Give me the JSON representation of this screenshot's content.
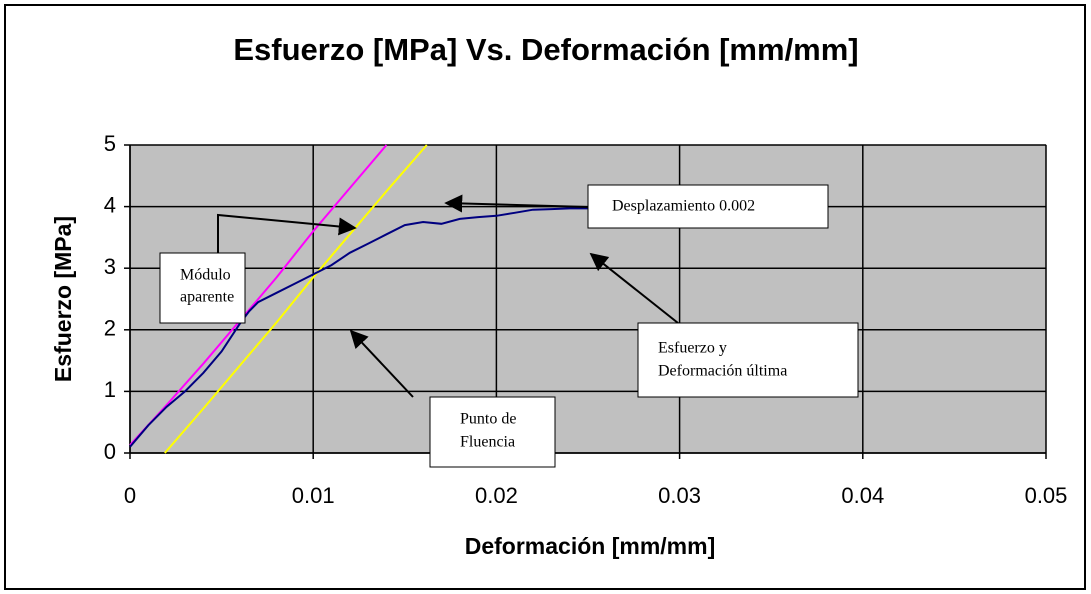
{
  "chart_data": {
    "type": "line",
    "title": "Esfuerzo  [MPa] Vs. Deformación [mm/mm]",
    "x_label": "Deformación [mm/mm]",
    "y_label": "Esfuerzo  [MPa]",
    "xlim": [
      0,
      0.05
    ],
    "ylim": [
      0,
      5
    ],
    "xticks": [
      0,
      0.01,
      0.02,
      0.03,
      0.04,
      0.05
    ],
    "yticks": [
      0,
      1,
      2,
      3,
      4,
      5
    ],
    "grid": true,
    "plot_background": "#c0c0c0",
    "series": [
      {
        "color": "#ff00ff",
        "x": [
          0,
          0.002,
          0.004,
          0.006,
          0.008,
          0.01,
          0.012,
          0.014
        ],
        "values": [
          0.13,
          0.78,
          1.45,
          2.15,
          2.85,
          3.6,
          4.3,
          5
        ]
      },
      {
        "color": "#ffff00",
        "x": [
          0.0019,
          0.004,
          0.006,
          0.008,
          0.01,
          0.012,
          0.014,
          0.0162
        ],
        "values": [
          0,
          0.72,
          1.42,
          2.12,
          2.85,
          3.55,
          4.25,
          5
        ]
      },
      {
        "color": "#000080",
        "x": [
          0,
          0.001,
          0.002,
          0.003,
          0.004,
          0.005,
          0.006,
          0.0065,
          0.007,
          0.008,
          0.009,
          0.01,
          0.011,
          0.012,
          0.013,
          0.014,
          0.015,
          0.016,
          0.017,
          0.018,
          0.019,
          0.02,
          0.021,
          0.022,
          0.023,
          0.024,
          0.025
        ],
        "values": [
          0.1,
          0.45,
          0.75,
          1.0,
          1.3,
          1.65,
          2.1,
          2.3,
          2.45,
          2.6,
          2.75,
          2.9,
          3.05,
          3.25,
          3.4,
          3.55,
          3.7,
          3.75,
          3.72,
          3.8,
          3.83,
          3.85,
          3.9,
          3.95,
          3.96,
          3.97,
          3.97
        ]
      }
    ],
    "annotations": [
      {
        "lines": [
          "Módulo",
          "aparente"
        ]
      },
      {
        "lines": [
          "Desplazamiento  0.002"
        ]
      },
      {
        "lines": [
          "Esfuerzo y",
          "Deformación última"
        ]
      },
      {
        "lines": [
          "Punto de",
          "Fluencia"
        ]
      }
    ]
  }
}
